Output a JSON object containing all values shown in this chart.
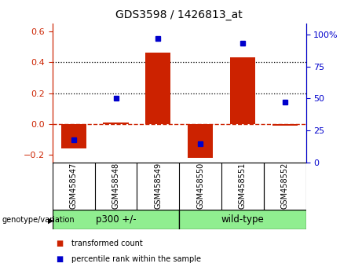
{
  "title": "GDS3598 / 1426813_at",
  "samples": [
    "GSM458547",
    "GSM458548",
    "GSM458549",
    "GSM458550",
    "GSM458551",
    "GSM458552"
  ],
  "transformed_count": [
    -0.16,
    0.01,
    0.46,
    -0.22,
    0.43,
    -0.01
  ],
  "percentile_rank": [
    18,
    50,
    97,
    15,
    93,
    47
  ],
  "group_label_prefix": "genotype/variation",
  "left_yaxis_color": "#cc2200",
  "right_yaxis_color": "#0000cc",
  "bar_color": "#cc2200",
  "dot_color": "#0000cc",
  "ylim_left": [
    -0.25,
    0.65
  ],
  "ylim_right": [
    0,
    108.33
  ],
  "yticks_left": [
    -0.2,
    0.0,
    0.2,
    0.4,
    0.6
  ],
  "yticks_right": [
    0,
    25,
    50,
    75,
    100
  ],
  "ytick_labels_right": [
    "0",
    "25",
    "50",
    "75",
    "100%"
  ],
  "hlines_dotted": [
    0.2,
    0.4
  ],
  "hline_zero_color": "#cc2200",
  "hline_zero_style": "--",
  "hline_dotted_style": ":",
  "hline_dotted_color": "black",
  "bg_plot": "#ffffff",
  "bg_xlabel": "#d3d3d3",
  "group_defs": [
    {
      "label": "p300 +/-",
      "start": 0,
      "end": 2,
      "color": "#90EE90"
    },
    {
      "label": "wild-type",
      "start": 3,
      "end": 5,
      "color": "#90EE90"
    }
  ],
  "legend_items": [
    "transformed count",
    "percentile rank within the sample"
  ],
  "legend_colors": [
    "#cc2200",
    "#0000cc"
  ],
  "bar_width": 0.6
}
